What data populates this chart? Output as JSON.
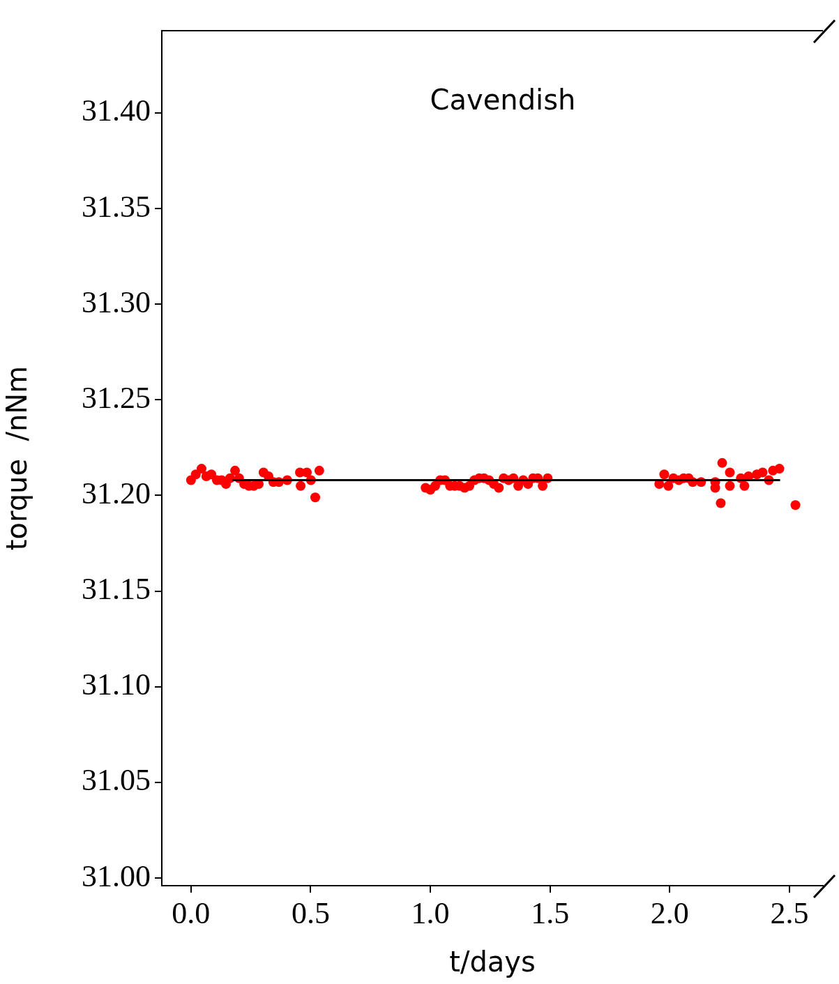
{
  "chart_data": {
    "type": "scatter",
    "xlabel": "t/days",
    "ylabel": "torque  /nNm",
    "annotations": [
      "Cavendish"
    ],
    "xlim": [
      -0.122,
      2.64
    ],
    "ylim": [
      30.996,
      31.443
    ],
    "xticks": [
      {
        "value": 0,
        "label": "0.0"
      },
      {
        "value": 0.5,
        "label": "0.5"
      },
      {
        "value": 1,
        "label": "1.0"
      },
      {
        "value": 1.5,
        "label": "1.5"
      },
      {
        "value": 2,
        "label": "2.0"
      },
      {
        "value": 2.5,
        "label": "2.5"
      }
    ],
    "yticks": [
      {
        "value": 31,
        "label": "31.00"
      },
      {
        "value": 31.05,
        "label": "31.05"
      },
      {
        "value": 31.1,
        "label": "31.10"
      },
      {
        "value": 31.15,
        "label": "31.15"
      },
      {
        "value": 31.2,
        "label": "31.20"
      },
      {
        "value": 31.25,
        "label": "31.25"
      },
      {
        "value": 31.3,
        "label": "31.30"
      },
      {
        "value": 31.35,
        "label": "31.35"
      },
      {
        "value": 31.4,
        "label": "31.40"
      }
    ],
    "grid": false,
    "legend": false,
    "marker": "circle",
    "series": [
      {
        "type": "scatter",
        "color": "#ff0000",
        "x": [
          0,
          0.02,
          0.044,
          0.064,
          0.085,
          0.108,
          0.128,
          0.146,
          0.163,
          0.184,
          0.201,
          0.222,
          0.242,
          0.262,
          0.283,
          0.303,
          0.324,
          0.344,
          0.367,
          0.402,
          0.455,
          0.458,
          0.484,
          0.501,
          0.519,
          0.536,
          0.98,
          1.0,
          1.02,
          1.041,
          1.061,
          1.082,
          1.102,
          1.122,
          1.143,
          1.163,
          1.184,
          1.204,
          1.224,
          1.245,
          1.265,
          1.286,
          1.306,
          1.327,
          1.347,
          1.367,
          1.388,
          1.408,
          1.429,
          1.449,
          1.469,
          1.49,
          1.956,
          1.977,
          1.994,
          2.015,
          2.038,
          2.058,
          2.079,
          2.096,
          2.131,
          2.19,
          2.19,
          2.213,
          2.219,
          2.251,
          2.251,
          2.297,
          2.312,
          2.329,
          2.364,
          2.388,
          2.414,
          2.431,
          2.458,
          2.525
        ],
        "values": [
          31.208,
          31.211,
          31.214,
          31.21,
          31.211,
          31.208,
          31.208,
          31.206,
          31.209,
          31.213,
          31.209,
          31.206,
          31.205,
          31.205,
          31.206,
          31.212,
          31.21,
          31.207,
          31.207,
          31.208,
          31.212,
          31.205,
          31.212,
          31.208,
          31.199,
          31.213,
          31.204,
          31.203,
          31.205,
          31.208,
          31.208,
          31.205,
          31.205,
          31.205,
          31.204,
          31.205,
          31.208,
          31.209,
          31.209,
          31.208,
          31.206,
          31.204,
          31.209,
          31.208,
          31.209,
          31.205,
          31.208,
          31.206,
          31.209,
          31.209,
          31.205,
          31.209,
          31.206,
          31.211,
          31.205,
          31.209,
          31.208,
          31.209,
          31.209,
          31.207,
          31.207,
          31.207,
          31.204,
          31.196,
          31.217,
          31.212,
          31.205,
          31.209,
          31.205,
          31.21,
          31.211,
          31.212,
          31.208,
          31.213,
          31.214,
          31.195
        ]
      },
      {
        "type": "line",
        "color": "#000000",
        "x": [
          0.172,
          2.461
        ],
        "values": [
          31.208,
          31.208
        ],
        "marker": "none",
        "line_style": "solid"
      }
    ]
  }
}
